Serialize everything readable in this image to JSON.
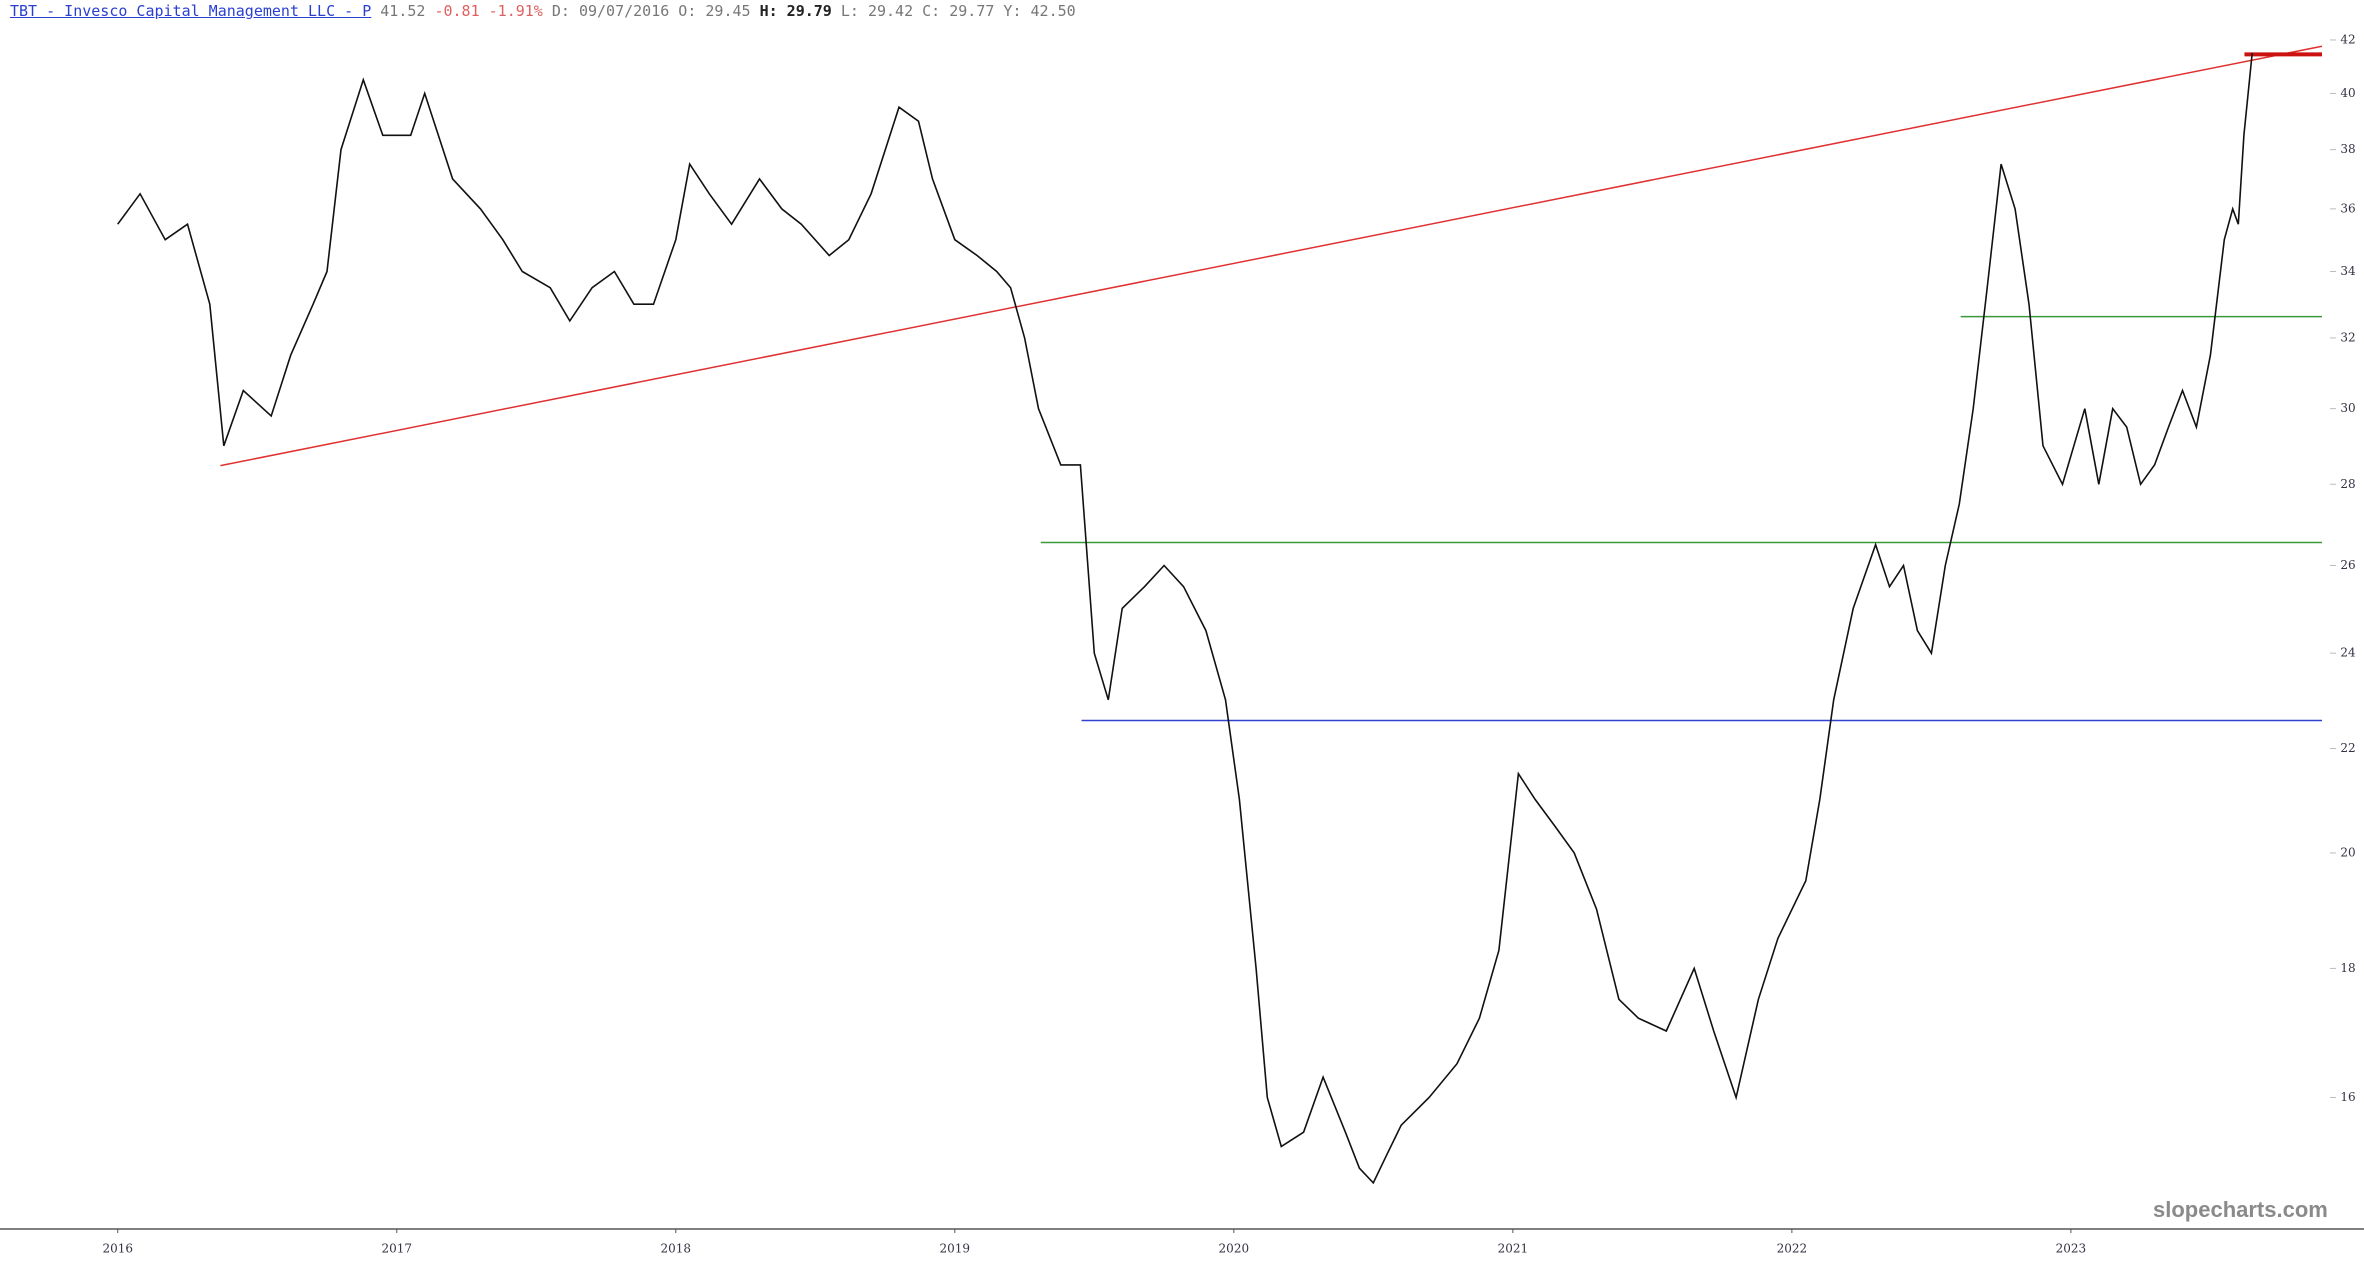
{
  "chart_data": {
    "type": "line",
    "title": "TBT - Invesco Capital Management LLC - P",
    "header_fields": [
      "41.52",
      "-0.81",
      "-1.91%",
      "D: 09/07/2016",
      "O: 29.45",
      "H: 29.79",
      "L: 29.42",
      "C: 29.77",
      "Y: 42.50"
    ],
    "header_colors": [
      "#777777",
      "#e06060",
      "#e06060",
      "#777777",
      "#777777",
      "#222222",
      "#777777",
      "#777777",
      "#777777"
    ],
    "watermark": "slopecharts.com",
    "log_scale": true,
    "xlim": [
      2015.578,
      2023.9
    ],
    "xticks": [
      2016,
      2017,
      2018,
      2019,
      2020,
      2021,
      2022,
      2023
    ],
    "ylim": [
      14.19,
      43.56
    ],
    "yticks": [
      16,
      18,
      20,
      22,
      24,
      26,
      28,
      30,
      32,
      34,
      36,
      38,
      40,
      42
    ],
    "series": [
      {
        "name": "TBT",
        "color": "#111111",
        "x": [
          2016.0,
          2016.08,
          2016.17,
          2016.25,
          2016.33,
          2016.38,
          2016.45,
          2016.55,
          2016.62,
          2016.7,
          2016.75,
          2016.8,
          2016.88,
          2016.95,
          2017.05,
          2017.1,
          2017.2,
          2017.3,
          2017.38,
          2017.45,
          2017.55,
          2017.62,
          2017.7,
          2017.78,
          2017.85,
          2017.92,
          2018.0,
          2018.05,
          2018.12,
          2018.2,
          2018.3,
          2018.38,
          2018.45,
          2018.55,
          2018.62,
          2018.7,
          2018.8,
          2018.87,
          2018.92,
          2019.0,
          2019.08,
          2019.15,
          2019.2,
          2019.25,
          2019.3,
          2019.38,
          2019.45,
          2019.5,
          2019.55,
          2019.6,
          2019.68,
          2019.75,
          2019.82,
          2019.9,
          2019.97,
          2020.02,
          2020.08,
          2020.12,
          2020.17,
          2020.25,
          2020.32,
          2020.4,
          2020.45,
          2020.5,
          2020.55,
          2020.6,
          2020.7,
          2020.8,
          2020.88,
          2020.95,
          2021.02,
          2021.08,
          2021.15,
          2021.22,
          2021.3,
          2021.38,
          2021.45,
          2021.55,
          2021.65,
          2021.72,
          2021.8,
          2021.88,
          2021.95,
          2022.05,
          2022.1,
          2022.15,
          2022.22,
          2022.3,
          2022.35,
          2022.4,
          2022.45,
          2022.5,
          2022.55,
          2022.6,
          2022.65,
          2022.7,
          2022.75,
          2022.8,
          2022.85,
          2022.9,
          2022.97,
          2023.05,
          2023.1,
          2023.15,
          2023.2,
          2023.25,
          2023.3,
          2023.35,
          2023.4,
          2023.45,
          2023.5,
          2023.55,
          2023.58,
          2023.6,
          2023.62,
          2023.65
        ],
        "values": [
          35.5,
          36.5,
          35,
          35.5,
          33,
          29,
          30.5,
          29.8,
          31.5,
          33,
          34,
          38,
          40.5,
          38.5,
          38.5,
          40,
          37,
          36,
          35,
          34,
          33.5,
          32.5,
          33.5,
          34,
          33,
          33,
          35,
          37.5,
          36.5,
          35.5,
          37,
          36,
          35.5,
          34.5,
          35,
          36.5,
          39.5,
          39,
          37,
          35,
          34.5,
          34,
          33.5,
          32,
          30,
          28.5,
          28.5,
          24,
          23,
          25,
          25.5,
          26,
          25.5,
          24.5,
          23,
          21,
          18,
          16,
          15.3,
          15.5,
          16.3,
          15.5,
          15,
          14.8,
          15.2,
          15.6,
          16,
          16.5,
          17.2,
          18.3,
          21.5,
          21,
          20.5,
          20,
          19,
          17.5,
          17.2,
          17,
          18,
          17,
          16,
          17.5,
          18.5,
          19.5,
          21,
          23,
          25,
          26.5,
          25.5,
          26,
          24.5,
          24,
          26,
          27.5,
          30,
          33.5,
          37.5,
          36,
          33,
          29,
          28,
          30,
          28,
          30,
          29.5,
          28,
          28.5,
          29.5,
          30.5,
          29.5,
          31.5,
          35,
          36,
          35.5,
          38.5,
          41.5
        ]
      }
    ],
    "trendlines": [
      {
        "color": "#e03030",
        "width": 1.5,
        "x": [
          2016.368,
          2023.9
        ],
        "y": [
          28.48,
          41.76
        ]
      },
      {
        "color": "#3a9a3a",
        "width": 1.5,
        "x": [
          2019.308,
          2023.9
        ],
        "y": [
          26.55,
          26.55
        ]
      },
      {
        "color": "#3a9a3a",
        "width": 1.5,
        "x": [
          2022.605,
          2023.9
        ],
        "y": [
          32.63,
          32.63
        ]
      },
      {
        "color": "#3040d0",
        "width": 1.5,
        "x": [
          2019.454,
          2023.9
        ],
        "y": [
          22.57,
          22.57
        ]
      },
      {
        "color": "#cc1111",
        "width": 4,
        "x": [
          2023.622,
          2023.9
        ],
        "y": [
          41.45,
          41.45
        ]
      }
    ]
  }
}
